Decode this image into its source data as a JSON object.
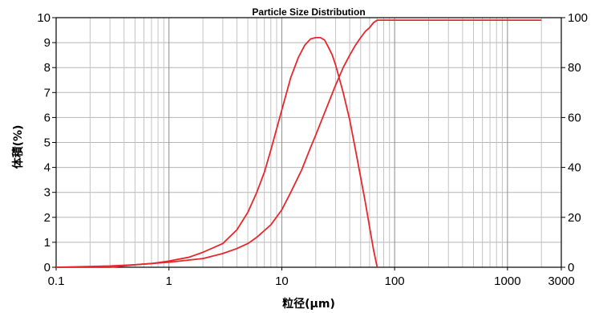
{
  "chart_data": {
    "type": "line",
    "title": "Particle Size Distribution",
    "xlabel": "粒径(μm)",
    "ylabel": "体積(%)",
    "x_scale": "log",
    "xlim": [
      0.1,
      3000
    ],
    "ylim": [
      0,
      10
    ],
    "y2lim": [
      0,
      100
    ],
    "x_ticks": [
      {
        "v": 0.1,
        "label": "0.1"
      },
      {
        "v": 1,
        "label": "1"
      },
      {
        "v": 10,
        "label": "10"
      },
      {
        "v": 100,
        "label": "100"
      },
      {
        "v": 1000,
        "label": "1000"
      },
      {
        "v": 3000,
        "label": "3000"
      }
    ],
    "y_ticks": [
      0,
      1,
      2,
      3,
      4,
      5,
      6,
      7,
      8,
      9,
      10
    ],
    "y2_ticks": [
      0,
      20,
      40,
      60,
      80,
      100
    ],
    "grid": true,
    "line_color": "#e8262b",
    "series": [
      {
        "axis": "left",
        "x": [
          0.1,
          0.3,
          0.5,
          0.7,
          1.0,
          1.5,
          2.0,
          3.0,
          4.0,
          5.0,
          6.0,
          7.0,
          8.0,
          10.0,
          12.0,
          14.0,
          16.0,
          18.0,
          20.0,
          22.0,
          24.0,
          26.0,
          28.0,
          30.0,
          35.0,
          40.0,
          45.0,
          50.0,
          55.0,
          60.0,
          65.0,
          70.0
        ],
        "y": [
          0,
          0,
          0.1,
          0.15,
          0.25,
          0.4,
          0.6,
          0.95,
          1.5,
          2.2,
          3.0,
          3.8,
          4.7,
          6.3,
          7.6,
          8.4,
          8.9,
          9.15,
          9.2,
          9.2,
          9.1,
          8.8,
          8.5,
          8.1,
          7.0,
          5.9,
          4.7,
          3.6,
          2.6,
          1.6,
          0.7,
          0
        ]
      },
      {
        "axis": "right",
        "x": [
          0.1,
          0.3,
          0.5,
          1.0,
          2.0,
          3.0,
          4.0,
          5.0,
          6.0,
          8.0,
          10.0,
          12.0,
          15.0,
          18.0,
          20.0,
          25.0,
          30.0,
          35.0,
          40.0,
          45.0,
          50.0,
          55.0,
          60.0,
          65.0,
          70.0,
          100.0,
          300.0,
          1000.0,
          2000.0
        ],
        "y": [
          0,
          0.5,
          1.0,
          2.0,
          3.5,
          5.5,
          7.5,
          9.5,
          12,
          17,
          23,
          30,
          39,
          48,
          53,
          64,
          73,
          80,
          85,
          89,
          92,
          94.5,
          96,
          98,
          99,
          99,
          99,
          99,
          99
        ]
      }
    ]
  }
}
